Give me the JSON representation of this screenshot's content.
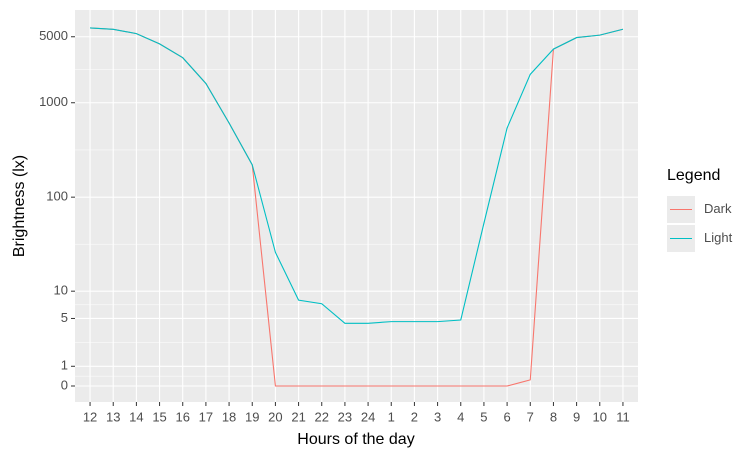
{
  "chart_data": {
    "type": "line",
    "x_label": "Hours of the day",
    "y_label": "Brightness (lx)",
    "categories": [
      "12",
      "13",
      "14",
      "15",
      "16",
      "17",
      "18",
      "19",
      "20",
      "21",
      "22",
      "23",
      "24",
      "1",
      "2",
      "3",
      "4",
      "5",
      "6",
      "7",
      "8",
      "9",
      "10",
      "11"
    ],
    "series": [
      {
        "name": "Dark",
        "color": "#f8766d",
        "values": [
          6200,
          6000,
          5400,
          4200,
          3000,
          1600,
          610,
          220,
          0,
          0,
          0,
          0,
          0,
          0,
          0,
          0,
          0,
          0,
          0,
          0.3,
          3700,
          4900,
          5200,
          6000
        ]
      },
      {
        "name": "Light",
        "color": "#00bfc4",
        "values": [
          6200,
          6000,
          5400,
          4200,
          3000,
          1600,
          610,
          220,
          26,
          8,
          7.3,
          4.4,
          4.4,
          4.6,
          4.6,
          4.6,
          4.8,
          53,
          540,
          2000,
          3700,
          4900,
          5200,
          6000
        ]
      }
    ],
    "y_scale": "pseudo_log",
    "ylim": [
      -0.8,
      9600
    ],
    "yticks": [
      0,
      1,
      5,
      10,
      100,
      1000,
      5000
    ],
    "grid": true,
    "legend_title": "Legend",
    "legend_position": "right"
  }
}
